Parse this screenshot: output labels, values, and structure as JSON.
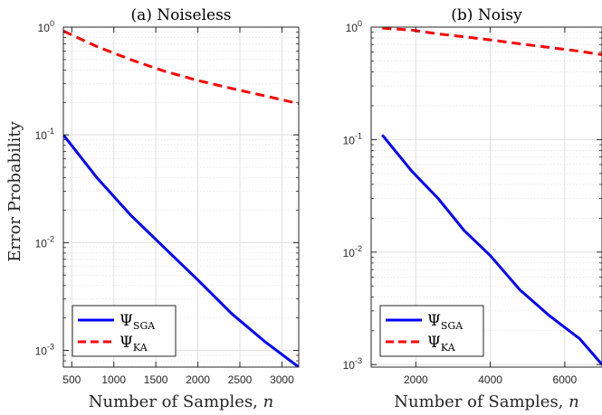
{
  "shared": {
    "ylabel": "Error Probability",
    "xlabel_text": "Number of Samples, ",
    "xlabel_var": "n",
    "y_tick_mantissa": "10",
    "y_tick_exponents": [
      "0",
      "-1",
      "-2",
      "-3"
    ]
  },
  "colors": {
    "sga": "#0000ff",
    "ka": "#ff0000",
    "grid": "#dfdfdf",
    "axis": "#262626"
  },
  "chart_data": [
    {
      "type": "line",
      "title": "(a) Noiseless",
      "y_scale": "log",
      "ylim": [
        0.0007,
        1
      ],
      "xlim": [
        400,
        3200
      ],
      "x_ticks": [
        500,
        1000,
        1500,
        2000,
        2500,
        3000
      ],
      "x_tick_labels": [
        "500",
        "1000",
        "1500",
        "2000",
        "2500",
        "3000"
      ],
      "grid": true,
      "legend": "bottom-left",
      "series": [
        {
          "name_symbol": "Ψ",
          "name_sub": "SGA",
          "style": "solid",
          "x": [
            400,
            800,
            1200,
            1600,
            2000,
            2400,
            2800,
            3200
          ],
          "y": [
            0.1,
            0.04,
            0.018,
            0.009,
            0.0045,
            0.0022,
            0.0012,
            0.0007
          ]
        },
        {
          "name_symbol": "Ψ",
          "name_sub": "KA",
          "style": "dashed",
          "x": [
            400,
            800,
            1200,
            1600,
            2000,
            2400,
            2800,
            3200
          ],
          "y": [
            0.92,
            0.66,
            0.5,
            0.39,
            0.32,
            0.27,
            0.23,
            0.195
          ]
        }
      ]
    },
    {
      "type": "line",
      "title": "(b) Noisy",
      "y_scale": "log",
      "ylim": [
        0.00095,
        1
      ],
      "xlim": [
        800,
        7000
      ],
      "x_ticks": [
        2000,
        4000,
        6000
      ],
      "x_tick_labels": [
        "2000",
        "4000",
        "6000"
      ],
      "grid": true,
      "legend": "bottom-left",
      "series": [
        {
          "name_symbol": "Ψ",
          "name_sub": "SGA",
          "style": "solid",
          "x": [
            1100,
            1900,
            2600,
            3300,
            4000,
            4800,
            5600,
            6400,
            7000
          ],
          "y": [
            0.11,
            0.052,
            0.03,
            0.0155,
            0.0093,
            0.0046,
            0.0027,
            0.0017,
            0.001
          ]
        },
        {
          "name_symbol": "Ψ",
          "name_sub": "KA",
          "style": "dashed",
          "x": [
            1100,
            1900,
            2600,
            3300,
            4000,
            4800,
            5600,
            6400,
            7000
          ],
          "y": [
            0.98,
            0.94,
            0.87,
            0.82,
            0.77,
            0.71,
            0.66,
            0.61,
            0.57
          ]
        }
      ]
    }
  ]
}
